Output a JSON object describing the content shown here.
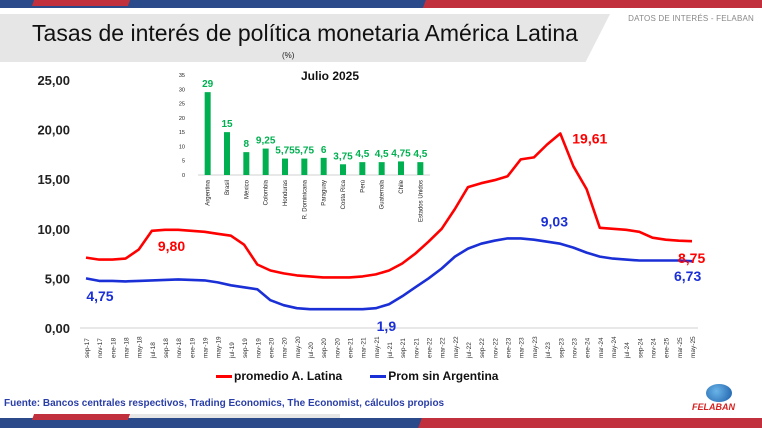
{
  "header": {
    "title": "Tasas de interés de política monetaria América Latina",
    "subtitle": "(%)",
    "tag": "DATOS DE INTERÉS - FELABAN"
  },
  "footer": {
    "source": "Fuente: Bancos centrales respectivos, Trading Economics, The Economist, cálculos propios",
    "logo_text": "FELABAN"
  },
  "colors": {
    "red": "#ff0000",
    "blue": "#1a2fd6",
    "green": "#00b050",
    "navy": "#2a4a8a",
    "brand_red": "#c0313d"
  },
  "chart_data": [
    {
      "type": "line",
      "title": "Tasas de interés de política monetaria América Latina",
      "ylabel": "%",
      "ylim": [
        0,
        25
      ],
      "yticks": [
        "0,00",
        "5,00",
        "10,00",
        "15,00",
        "20,00",
        "25,00"
      ],
      "x": [
        "sep-17",
        "nov-17",
        "ene-18",
        "mar-18",
        "may-18",
        "jul-18",
        "sep-18",
        "nov-18",
        "ene-19",
        "mar-19",
        "may-19",
        "jul-19",
        "sep-19",
        "nov-19",
        "ene-20",
        "mar-20",
        "may-20",
        "jul-20",
        "sep-20",
        "nov-20",
        "ene-21",
        "mar-21",
        "may-21",
        "jul-21",
        "sep-21",
        "nov-21",
        "ene-22",
        "mar-22",
        "may-22",
        "jul-22",
        "sep-22",
        "nov-22",
        "ene-23",
        "mar-23",
        "may-23",
        "jul-23",
        "sep-23",
        "nov-23",
        "ene-24",
        "mar-24",
        "may-24",
        "jul-24",
        "sep-24",
        "nov-24",
        "ene-25",
        "mar-25",
        "may-25"
      ],
      "legend_position": "bottom",
      "series": [
        {
          "name": "promedio A. Latina",
          "color": "#ff0000",
          "values": [
            7.1,
            6.9,
            6.9,
            7.0,
            7.9,
            9.8,
            9.9,
            9.9,
            9.8,
            9.7,
            9.5,
            9.3,
            8.4,
            6.4,
            5.8,
            5.5,
            5.3,
            5.2,
            5.1,
            5.1,
            5.1,
            5.2,
            5.4,
            5.8,
            6.5,
            7.5,
            8.7,
            10.0,
            12.0,
            14.2,
            14.6,
            14.9,
            15.3,
            17.0,
            17.2,
            18.5,
            19.61,
            16.3,
            14.0,
            10.1,
            10.0,
            9.9,
            9.7,
            9.1,
            8.9,
            8.8,
            8.75
          ],
          "annotations": [
            {
              "x": "jul-18",
              "label": "9,80"
            },
            {
              "x": "sep-23",
              "label": "19,61"
            },
            {
              "x": "may-25",
              "label": "8,75"
            }
          ]
        },
        {
          "name": "Prom sin Argentina",
          "color": "#1a2fd6",
          "values": [
            5.0,
            4.75,
            4.75,
            4.7,
            4.75,
            4.8,
            4.85,
            4.9,
            4.85,
            4.8,
            4.6,
            4.3,
            4.1,
            3.9,
            2.8,
            2.3,
            2.0,
            1.9,
            1.9,
            1.9,
            1.9,
            1.9,
            2.0,
            2.4,
            3.2,
            4.1,
            5.0,
            6.0,
            7.2,
            8.0,
            8.5,
            8.8,
            9.03,
            9.03,
            8.9,
            8.7,
            8.5,
            8.1,
            7.6,
            7.2,
            7.0,
            6.9,
            6.8,
            6.8,
            6.8,
            6.8,
            6.73
          ],
          "annotations": [
            {
              "x": "ene-18",
              "label": "4,75"
            },
            {
              "x": "mar-21",
              "label": "1,9"
            },
            {
              "x": "mar-23",
              "label": "9,03"
            },
            {
              "x": "may-25",
              "label": "6,73"
            }
          ]
        }
      ]
    },
    {
      "type": "bar",
      "title": "Julio 2025",
      "ylim": [
        0,
        35
      ],
      "yticks": [
        "0",
        "5",
        "10",
        "15",
        "20",
        "25",
        "30",
        "35"
      ],
      "categories": [
        "Argentina",
        "Brasil",
        "México",
        "Colombia",
        "Honduras",
        "R. Dominicana",
        "Paraguay",
        "Costa Rica",
        "Perú",
        "Guatemala",
        "Chile",
        "Estados Unidos"
      ],
      "values": [
        29,
        15,
        8,
        9.25,
        5.75,
        5.75,
        6,
        3.75,
        4.5,
        4.5,
        4.75,
        4.5
      ],
      "labels": [
        "29",
        "15",
        "8",
        "9,25",
        "5,75",
        "5,75",
        "6",
        "3,75",
        "4,5",
        "4,5",
        "4,75",
        "4,5"
      ],
      "color": "#00b050"
    }
  ]
}
